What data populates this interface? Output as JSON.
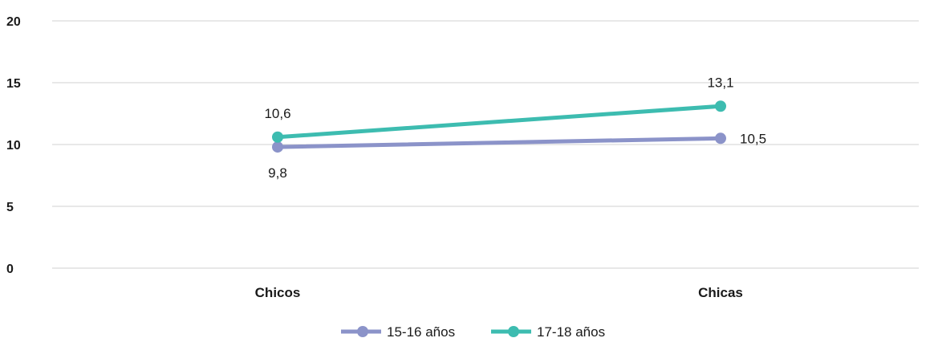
{
  "chart_data": {
    "type": "line",
    "categories": [
      "Chicos",
      "Chicas"
    ],
    "series": [
      {
        "name": "15-16 años",
        "values": [
          9.8,
          10.5
        ],
        "labels": [
          "9,8",
          "10,5"
        ],
        "color": "#8b93c9"
      },
      {
        "name": "17-18 años",
        "values": [
          10.6,
          13.1
        ],
        "labels": [
          "10,6",
          "13,1"
        ],
        "color": "#3dbcb0"
      }
    ],
    "ylim": [
      0,
      20
    ],
    "yticks": [
      "0",
      "5",
      "10",
      "15",
      "20"
    ],
    "grid": true,
    "legend_position": "bottom"
  }
}
